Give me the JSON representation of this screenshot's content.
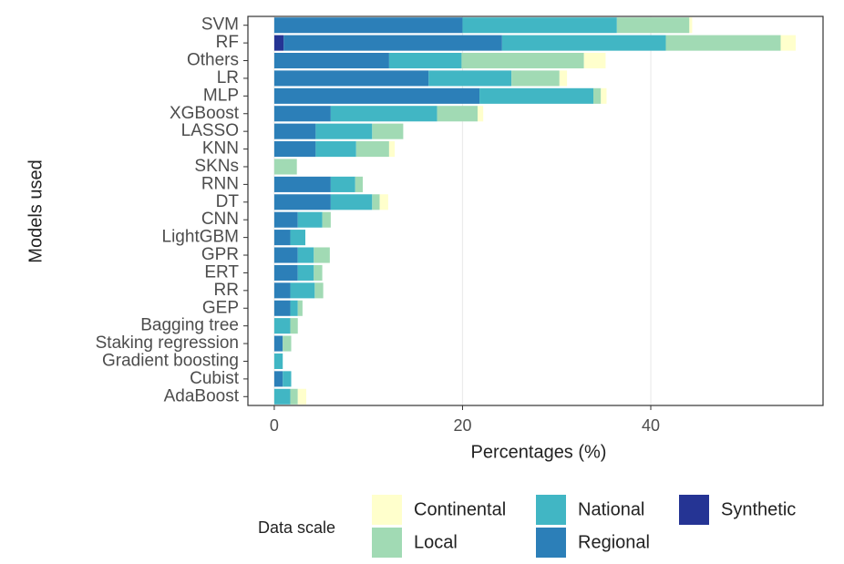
{
  "chart_data": {
    "type": "stacked-barh",
    "x_label": "Percentages (%)",
    "y_label": "Models used",
    "legend_title": "Data scale",
    "categories": [
      "SVM",
      "RF",
      "Others",
      "LR",
      "MLP",
      "XGBoost",
      "LASSO",
      "KNN",
      "SKNs",
      "RNN",
      "DT",
      "CNN",
      "LightGBM",
      "GPR",
      "ERT",
      "RR",
      "GEP",
      "Bagging tree",
      "Staking regression",
      "Gradient boosting",
      "Cubist",
      "AdaBoost"
    ],
    "series": [
      {
        "name": "Continental",
        "color": "#ffffcc",
        "values": [
          0.3,
          1.6,
          2.3,
          0.8,
          0.6,
          0.6,
          0,
          0.6,
          0,
          0,
          0.9,
          0,
          0,
          0,
          0,
          0,
          0,
          0,
          0,
          0,
          0,
          0.9
        ]
      },
      {
        "name": "Local",
        "color": "#a1dab4",
        "values": [
          7.7,
          12.2,
          13.0,
          5.1,
          0.8,
          4.3,
          3.3,
          3.5,
          2.4,
          0.8,
          0.8,
          0.9,
          0,
          1.7,
          0.9,
          0.9,
          0.5,
          0.8,
          0.9,
          0,
          0,
          0.8
        ]
      },
      {
        "name": "National",
        "color": "#41b6c4",
        "values": [
          16.4,
          17.4,
          7.7,
          8.8,
          12.1,
          11.3,
          6.0,
          4.3,
          0,
          2.6,
          4.4,
          2.6,
          1.6,
          1.7,
          1.7,
          2.6,
          0.8,
          1.7,
          0,
          0.9,
          0.9,
          1.7
        ]
      },
      {
        "name": "Regional",
        "color": "#2c7fb8",
        "values": [
          20.0,
          23.2,
          12.2,
          16.4,
          21.8,
          6.0,
          4.4,
          4.4,
          0,
          6.0,
          6.0,
          2.5,
          1.7,
          2.5,
          2.5,
          1.7,
          1.7,
          0,
          0.9,
          0,
          0.9,
          0
        ]
      },
      {
        "name": "Synthetic",
        "color": "#253494",
        "values": [
          0,
          1.0,
          0,
          0,
          0,
          0,
          0,
          0,
          0,
          0,
          0,
          0,
          0,
          0,
          0,
          0,
          0,
          0,
          0,
          0,
          0,
          0
        ]
      }
    ],
    "xlim": [
      -2.8,
      58.3
    ],
    "xticks": [
      0,
      20,
      40
    ],
    "grid": true,
    "legend_position": "bottom"
  }
}
